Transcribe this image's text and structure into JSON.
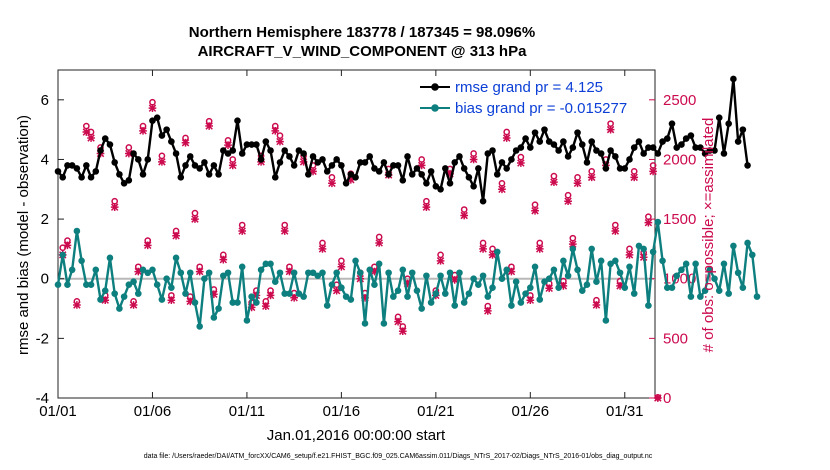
{
  "chart_data": {
    "type": "line",
    "title_line1": "Northern Hemisphere 183778 / 187345 = 98.096%",
    "title_line2": "AIRCRAFT_V_WIND_COMPONENT @ 313 hPa",
    "ylabel_left": "rmse and bias (model - observation)",
    "ylabel_right": "# of obs: o=possible; ×=assimilated",
    "xlabel": "Jan.01,2016 00:00:00 start",
    "footer": "data file: /Users/raeder/DAI/ATM_forcXX/CAM6_setup/f.e21.FHIST_BGC.f09_025.CAM6assim.011/Diags_NTrS_2017-02/Diags_NTrS_2016-01/obs_diag_output.nc",
    "xlim": [
      0,
      31.6
    ],
    "ylim_left": [
      -4,
      7
    ],
    "ylim_right": [
      0,
      2750
    ],
    "x_ticks": [
      0,
      5,
      10,
      15,
      20,
      25,
      30
    ],
    "x_tick_labels": [
      "01/01",
      "01/06",
      "01/11",
      "01/16",
      "01/21",
      "01/26",
      "01/31"
    ],
    "y_ticks_left": [
      -4,
      -2,
      0,
      2,
      4,
      6
    ],
    "y_tick_labels_left": [
      "-4",
      "-2",
      "0",
      "2",
      "4",
      "6"
    ],
    "y_ticks_right": [
      0,
      500,
      1000,
      1500,
      2000,
      2500
    ],
    "y_tick_labels_right": [
      "0",
      "500",
      "1000",
      "1500",
      "2000",
      "2500"
    ],
    "legend": [
      {
        "name": "rmse grand pr = 4.125",
        "color": "#000000"
      },
      {
        "name": "bias grand pr = -0.015277",
        "color": "#0e7f7f"
      }
    ],
    "series": [
      {
        "name": "rmse",
        "color": "#000000",
        "dx": 0.25,
        "values": [
          3.6,
          3.4,
          3.8,
          3.8,
          3.7,
          3.4,
          3.8,
          3.4,
          3.6,
          4.3,
          4.7,
          4.5,
          3.9,
          3.5,
          3.2,
          3.3,
          4.2,
          4.0,
          3.5,
          4.0,
          5.3,
          5.4,
          4.8,
          5.0,
          4.6,
          4.2,
          3.4,
          3.8,
          4.1,
          3.8,
          3.7,
          3.9,
          3.5,
          3.8,
          3.5,
          4.3,
          4.2,
          4.3,
          5.3,
          4.2,
          4.5,
          4.5,
          4.5,
          4.0,
          4.6,
          4.3,
          3.4,
          3.9,
          4.3,
          4.1,
          3.8,
          4.3,
          4.2,
          3.5,
          4.1,
          3.9,
          4.0,
          3.6,
          3.8,
          4.0,
          3.8,
          3.2,
          3.5,
          3.4,
          3.9,
          3.9,
          4.1,
          3.7,
          3.6,
          3.9,
          3.5,
          3.8,
          3.8,
          3.3,
          4.1,
          3.5,
          3.7,
          3.5,
          3.2,
          3.6,
          3.1,
          3.0,
          3.7,
          3.2,
          3.9,
          4.1,
          3.7,
          3.4,
          3.1,
          3.7,
          2.6,
          4.2,
          4.3,
          3.5,
          3.9,
          3.7,
          4.0,
          4.3,
          4.4,
          4.7,
          4.4,
          4.9,
          4.6,
          5.0,
          4.6,
          4.5,
          4.3,
          4.6,
          4.1,
          4.4,
          4.9,
          4.5,
          3.9,
          4.6,
          4.3,
          4.2,
          3.7,
          4.3,
          4.1,
          3.7,
          3.7,
          4.0,
          4.4,
          4.6,
          4.2,
          4.4,
          4.4,
          4.2,
          4.6,
          4.7,
          5.2,
          4.4,
          4.5,
          4.7,
          4.8,
          4.4,
          4.4,
          4.2,
          4.3,
          4.3,
          5.4,
          4.2,
          5.2,
          6.7,
          4.6,
          5.0,
          3.8
        ]
      },
      {
        "name": "bias",
        "color": "#0e7f7f",
        "dx": 0.25,
        "values": [
          -0.2,
          0.8,
          -0.2,
          0.3,
          1.6,
          0.6,
          -0.2,
          -0.2,
          0.3,
          -0.7,
          -0.4,
          0.7,
          -0.5,
          -1.0,
          -0.6,
          -0.2,
          -0.1,
          -0.5,
          0.3,
          0.2,
          0.3,
          -0.2,
          -0.7,
          0.0,
          -0.3,
          0.7,
          0.2,
          -0.5,
          0.2,
          -0.8,
          -1.6,
          0.0,
          0.2,
          -1.3,
          -1.0,
          0.1,
          0.2,
          -0.8,
          -0.8,
          0.4,
          -1.4,
          -0.6,
          -0.8,
          0.3,
          0.5,
          0.5,
          -0.1,
          0.2,
          -0.5,
          -0.5,
          0.2,
          -0.5,
          -0.6,
          0.2,
          0.2,
          0.1,
          0.2,
          -0.9,
          -0.2,
          0.2,
          -0.3,
          -0.6,
          -0.7,
          0.6,
          0.2,
          -1.5,
          0.3,
          -0.2,
          0.5,
          -1.5,
          0.2,
          -0.6,
          -0.4,
          0.3,
          -0.6,
          0.2,
          -0.4,
          -1.0,
          0.1,
          -0.8,
          -0.5,
          0.1,
          -0.5,
          0.2,
          -0.9,
          0.2,
          -0.8,
          -0.5,
          0.0,
          -0.2,
          0.1,
          -0.6,
          -0.3,
          0.9,
          0.0,
          0.3,
          -0.9,
          -0.1,
          -0.8,
          -0.5,
          -0.3,
          0.4,
          -0.7,
          -0.1,
          0.0,
          0.3,
          -0.3,
          0.6,
          0.1,
          1.0,
          0.3,
          -0.4,
          -0.2,
          1.0,
          -0.1,
          0.6,
          -1.4,
          0.5,
          0.6,
          0.2,
          -0.3,
          0.4,
          -0.5,
          1.1,
          1.0,
          -0.9,
          0.9,
          1.9,
          0.6,
          -0.3,
          -0.3,
          0.1,
          0.3,
          0.5,
          -0.6,
          0.5,
          -0.6,
          -0.4,
          0.3,
          0.0,
          -0.4,
          0.5,
          -0.5,
          1.1,
          0.2,
          -0.3,
          1.2,
          0.8,
          -0.6
        ]
      },
      {
        "name": "possible",
        "marker": "o",
        "color": "#cc0a4e",
        "axis": "right",
        "points": [
          [
            0.25,
            1260
          ],
          [
            0.5,
            1320
          ],
          [
            1.0,
            810
          ],
          [
            1.5,
            2280
          ],
          [
            1.75,
            2230
          ],
          [
            2.25,
            2100
          ],
          [
            2.5,
            860
          ],
          [
            3.0,
            1650
          ],
          [
            3.75,
            2100
          ],
          [
            4.0,
            810
          ],
          [
            4.25,
            1100
          ],
          [
            4.5,
            2280
          ],
          [
            4.75,
            1320
          ],
          [
            5.0,
            2480
          ],
          [
            5.5,
            2030
          ],
          [
            6.0,
            860
          ],
          [
            6.25,
            1400
          ],
          [
            6.75,
            2180
          ],
          [
            7.0,
            850
          ],
          [
            7.25,
            1550
          ],
          [
            7.5,
            1100
          ],
          [
            8.0,
            2320
          ],
          [
            8.25,
            910
          ],
          [
            8.75,
            1200
          ],
          [
            9.0,
            2160
          ],
          [
            9.25,
            2000
          ],
          [
            9.75,
            1450
          ],
          [
            10.25,
            800
          ],
          [
            10.5,
            900
          ],
          [
            10.75,
            2030
          ],
          [
            11.0,
            810
          ],
          [
            11.25,
            900
          ],
          [
            11.5,
            2280
          ],
          [
            11.75,
            2200
          ],
          [
            12.0,
            1450
          ],
          [
            12.25,
            1100
          ],
          [
            12.5,
            880
          ],
          [
            13.0,
            2030
          ],
          [
            13.5,
            1950
          ],
          [
            14.0,
            1300
          ],
          [
            14.5,
            1850
          ],
          [
            14.75,
            950
          ],
          [
            15.0,
            1150
          ],
          [
            15.5,
            1880
          ],
          [
            16.0,
            1050
          ],
          [
            16.25,
            880
          ],
          [
            16.75,
            1100
          ],
          [
            17.0,
            1350
          ],
          [
            17.5,
            1920
          ],
          [
            18.0,
            680
          ],
          [
            18.25,
            600
          ],
          [
            18.5,
            1000
          ],
          [
            19.25,
            2000
          ],
          [
            19.5,
            1650
          ],
          [
            20.0,
            900
          ],
          [
            20.25,
            1200
          ],
          [
            20.75,
            1920
          ],
          [
            21.0,
            1030
          ],
          [
            21.5,
            1580
          ],
          [
            22.0,
            2050
          ],
          [
            22.5,
            1300
          ],
          [
            22.75,
            770
          ],
          [
            23.0,
            1250
          ],
          [
            23.5,
            1800
          ],
          [
            23.75,
            2230
          ],
          [
            24.0,
            1100
          ],
          [
            24.5,
            2020
          ],
          [
            25.0,
            860
          ],
          [
            25.25,
            1620
          ],
          [
            25.5,
            1300
          ],
          [
            26.0,
            960
          ],
          [
            26.25,
            1860
          ],
          [
            26.75,
            980
          ],
          [
            27.0,
            1700
          ],
          [
            27.25,
            1340
          ],
          [
            27.5,
            1850
          ],
          [
            28.25,
            1900
          ],
          [
            28.5,
            820
          ],
          [
            29.0,
            2000
          ],
          [
            29.25,
            2300
          ],
          [
            29.5,
            1450
          ],
          [
            29.75,
            980
          ],
          [
            30.25,
            1250
          ],
          [
            30.5,
            1900
          ],
          [
            31.0,
            1220
          ],
          [
            31.25,
            1520
          ],
          [
            31.5,
            1950
          ],
          [
            31.75,
            5
          ]
        ]
      },
      {
        "name": "assimilated",
        "marker": "x",
        "color": "#cc0a4e",
        "axis": "right",
        "points": [
          [
            0.25,
            1200
          ],
          [
            0.5,
            1280
          ],
          [
            1.0,
            780
          ],
          [
            1.5,
            2230
          ],
          [
            1.75,
            2180
          ],
          [
            2.25,
            2050
          ],
          [
            2.5,
            820
          ],
          [
            3.0,
            1600
          ],
          [
            3.75,
            2050
          ],
          [
            4.0,
            780
          ],
          [
            4.25,
            1060
          ],
          [
            4.5,
            2240
          ],
          [
            4.75,
            1280
          ],
          [
            5.0,
            2430
          ],
          [
            5.5,
            1980
          ],
          [
            6.0,
            820
          ],
          [
            6.25,
            1360
          ],
          [
            6.75,
            2140
          ],
          [
            7.0,
            810
          ],
          [
            7.25,
            1500
          ],
          [
            7.5,
            1060
          ],
          [
            8.0,
            2280
          ],
          [
            8.25,
            870
          ],
          [
            8.75,
            1160
          ],
          [
            9.0,
            2120
          ],
          [
            9.25,
            1950
          ],
          [
            9.75,
            1400
          ],
          [
            10.25,
            760
          ],
          [
            10.5,
            860
          ],
          [
            10.75,
            1980
          ],
          [
            11.0,
            770
          ],
          [
            11.25,
            860
          ],
          [
            11.5,
            2240
          ],
          [
            11.75,
            2150
          ],
          [
            12.0,
            1400
          ],
          [
            12.25,
            1060
          ],
          [
            12.5,
            840
          ],
          [
            13.0,
            1980
          ],
          [
            13.5,
            1900
          ],
          [
            14.0,
            1250
          ],
          [
            14.5,
            1800
          ],
          [
            14.75,
            900
          ],
          [
            15.0,
            1100
          ],
          [
            15.5,
            1830
          ],
          [
            16.0,
            1000
          ],
          [
            16.25,
            840
          ],
          [
            16.75,
            1060
          ],
          [
            17.0,
            1300
          ],
          [
            17.5,
            1870
          ],
          [
            18.0,
            640
          ],
          [
            18.25,
            560
          ],
          [
            18.5,
            960
          ],
          [
            19.25,
            1950
          ],
          [
            19.5,
            1600
          ],
          [
            20.0,
            860
          ],
          [
            20.25,
            1150
          ],
          [
            20.75,
            1880
          ],
          [
            21.0,
            990
          ],
          [
            21.5,
            1530
          ],
          [
            22.0,
            2000
          ],
          [
            22.5,
            1250
          ],
          [
            22.75,
            730
          ],
          [
            23.0,
            1200
          ],
          [
            23.5,
            1750
          ],
          [
            23.75,
            2180
          ],
          [
            24.0,
            1060
          ],
          [
            24.5,
            1970
          ],
          [
            25.0,
            820
          ],
          [
            25.25,
            1570
          ],
          [
            25.5,
            1250
          ],
          [
            26.0,
            920
          ],
          [
            26.25,
            1810
          ],
          [
            26.75,
            940
          ],
          [
            27.0,
            1650
          ],
          [
            27.25,
            1290
          ],
          [
            27.5,
            1800
          ],
          [
            28.25,
            1850
          ],
          [
            28.5,
            780
          ],
          [
            29.0,
            1950
          ],
          [
            29.25,
            2250
          ],
          [
            29.5,
            1400
          ],
          [
            29.75,
            940
          ],
          [
            30.25,
            1200
          ],
          [
            30.5,
            1850
          ],
          [
            31.0,
            1180
          ],
          [
            31.25,
            1470
          ],
          [
            31.5,
            1900
          ],
          [
            31.75,
            0
          ]
        ]
      }
    ]
  }
}
